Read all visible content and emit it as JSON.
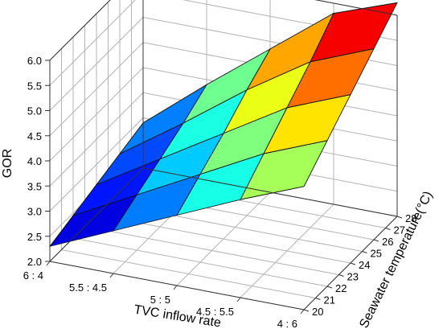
{
  "chart_data": {
    "type": "surface3d",
    "title": "",
    "xlabel": "TVC inflow rate",
    "ylabel": "Seawater temperature(°C)",
    "zlabel": "GOR",
    "x_ticks": [
      "6 : 4",
      "5.5 : 4.5",
      "5 : 5",
      "4.5 : 5.5",
      "4 : 6"
    ],
    "y_ticks": [
      "20",
      "21",
      "22",
      "23",
      "24",
      "25",
      "26",
      "27",
      "28"
    ],
    "z_ticks": [
      "2.0",
      "2.5",
      "3.0",
      "3.5",
      "4.0",
      "4.5",
      "5.0",
      "5.5",
      "6.0"
    ],
    "xlim": [
      0,
      4
    ],
    "ylim": [
      20,
      28
    ],
    "zlim": [
      2.0,
      6.0
    ],
    "grid": true,
    "colormap": "jet",
    "surface_x": [
      0,
      1,
      2,
      3,
      4
    ],
    "surface_y": [
      20,
      22,
      24,
      26,
      28
    ],
    "surface_z": [
      [
        2.3,
        2.45,
        2.6,
        2.75,
        2.9
      ],
      [
        2.85,
        3.1,
        3.35,
        3.6,
        3.9
      ],
      [
        3.4,
        3.75,
        4.1,
        4.5,
        4.85
      ],
      [
        3.95,
        4.4,
        4.85,
        5.3,
        5.8
      ],
      [
        4.45,
        4.9,
        5.35,
        5.8,
        6.25
      ]
    ]
  },
  "colors": {
    "background": "#ffffff",
    "grid": "#b4b4b4",
    "axis": "#000000",
    "mesh": "#111111"
  }
}
